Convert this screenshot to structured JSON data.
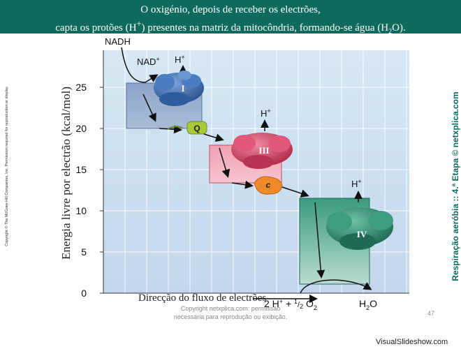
{
  "banner": {
    "line1": "O oxigénio, depois de receber os electrões,",
    "line2_a": "capta os protões (H",
    "line2_sup": "+",
    "line2_b": ") presentes na matriz da mitocôndria, formando-se água (H",
    "line2_sub": "2",
    "line2_c": "O)."
  },
  "side_left": "Copyright © The McGraw-Hill Companies, Inc. Permission required for reproduction or display.",
  "side_right": "Respiração aeróbia :: 4.ª Etapa © netxplica.com",
  "chart": {
    "ylabel": "Energia livre por electrão (kcal/mol)",
    "xlabel": "Direcção do fluxo de electrões",
    "yticks": [
      0,
      5,
      10,
      15,
      20,
      25
    ],
    "ymax": 29.5
  },
  "labels": {
    "nadh": "NADH",
    "nad": "NAD",
    "plus": "+",
    "h": "H",
    "complex_i": "I",
    "q": "Q",
    "complex_iii": "III",
    "c": "c",
    "complex_iv": "IV",
    "reactant_a": "2 H",
    "reactant_b": " + ",
    "half_num": "1",
    "half_den": "2",
    "o2": " O",
    "sub2": "2",
    "water_h": "H",
    "water_o": "O"
  },
  "colors": {
    "banner": "#0f6a5e",
    "complex_i": "#3e6fb0",
    "complex_iii": "#d8405e",
    "complex_iv": "#2e8a72",
    "q": "#a9c93a",
    "c": "#ee8a2a"
  },
  "footer": {
    "credit1": "Copyright netxplica.com: permissão",
    "credit2": "necessária para reprodução ou exibição.",
    "page": "47",
    "watermark": "VisualSlideshow.com"
  }
}
